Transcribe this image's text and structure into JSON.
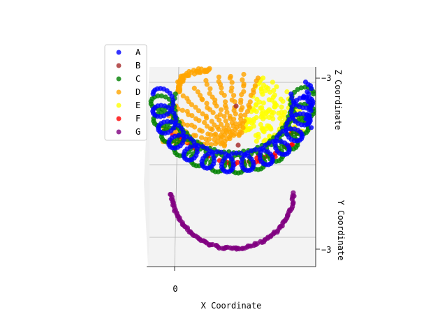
{
  "chart_data": {
    "type": "scatter",
    "projection": "3d",
    "xlabel": "X Coordinate",
    "ylabel": "Y Coordinate",
    "zlabel": "Z Coordinate",
    "x_ticks": [
      "0"
    ],
    "y_ticks": [
      "−3"
    ],
    "z_ticks": [
      "−3"
    ],
    "grid": true,
    "legend_position": "top-left",
    "series": [
      {
        "name": "A",
        "color": "#0000ff"
      },
      {
        "name": "B",
        "color": "#a52a2a"
      },
      {
        "name": "C",
        "color": "#008000"
      },
      {
        "name": "D",
        "color": "#ffa500"
      },
      {
        "name": "E",
        "color": "#ffff00"
      },
      {
        "name": "F",
        "color": "#ff0000"
      },
      {
        "name": "G",
        "color": "#800080"
      }
    ]
  }
}
